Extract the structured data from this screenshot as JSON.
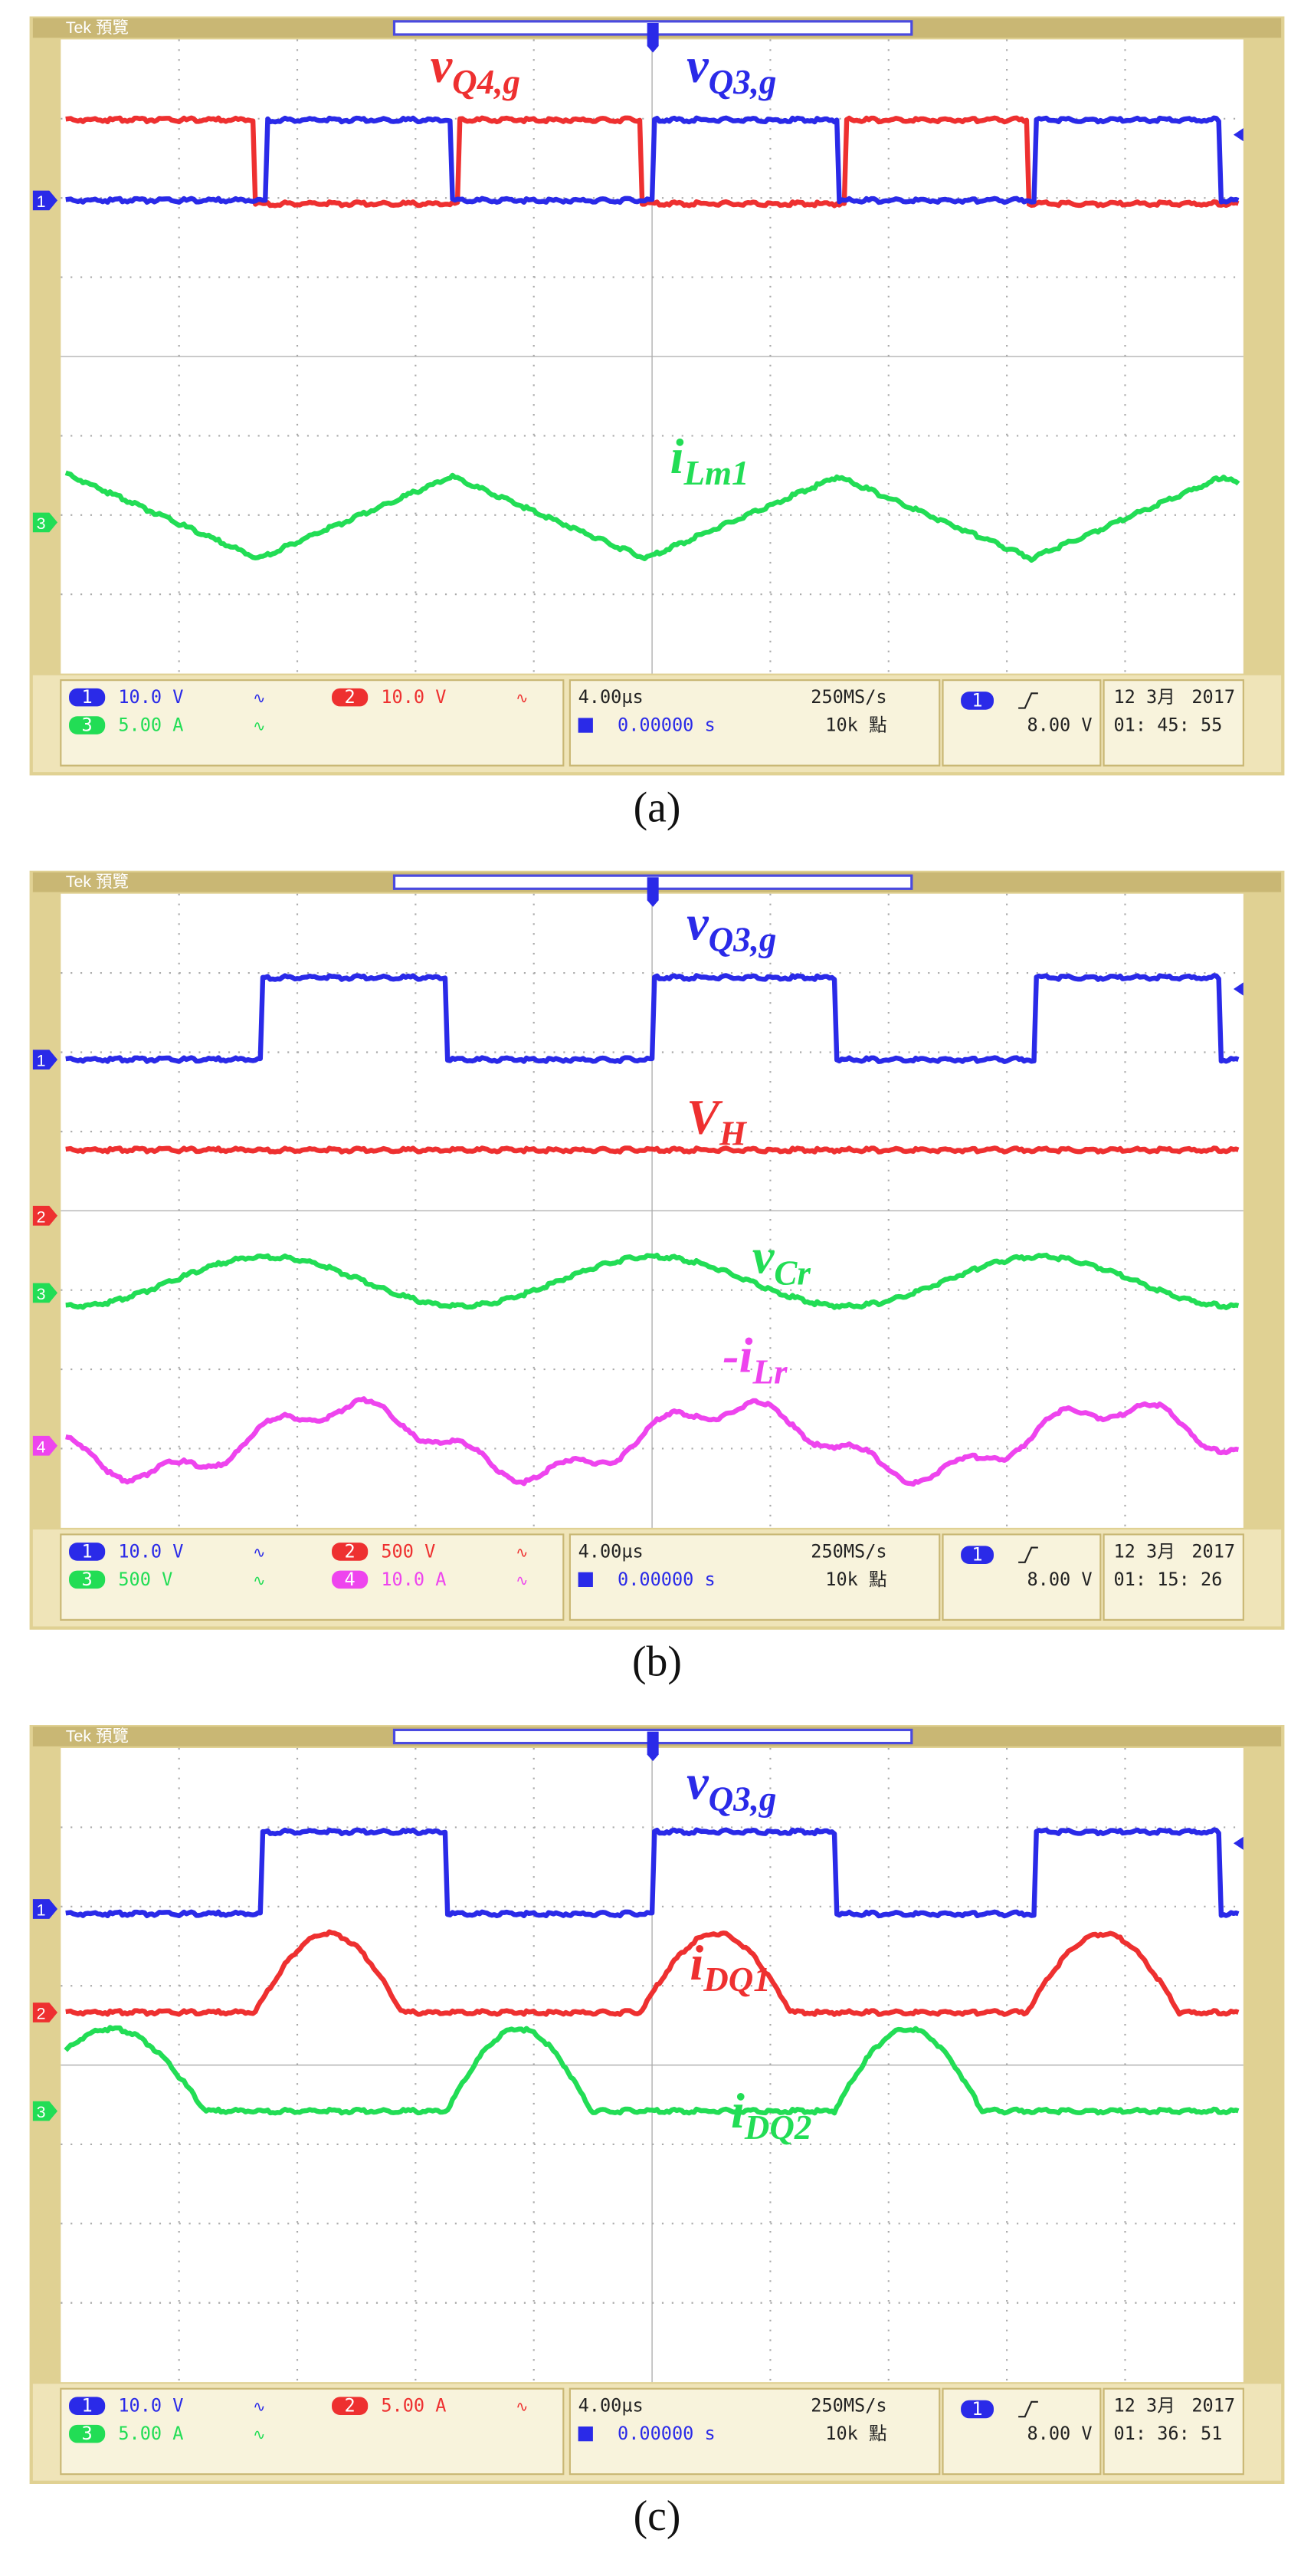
{
  "panels": [
    {
      "label": "(a)",
      "header": "Tek 預覽",
      "traces": [
        {
          "main": "v",
          "sub": "Q4,g"
        },
        {
          "main": "v",
          "sub": "Q3,g"
        },
        {
          "main": "i",
          "sub": "Lm1"
        }
      ],
      "markers": [
        "1",
        "3"
      ],
      "status": {
        "channels": [
          {
            "num": "1",
            "scale": "10.0 V"
          },
          {
            "num": "2",
            "scale": "10.0 V"
          },
          {
            "num": "3",
            "scale": "5.00 A"
          }
        ],
        "timebase": "4.00µs",
        "rate": "250MS/s",
        "position": "0.00000 s",
        "points": "10k 點",
        "trigger": "1",
        "level": "8.00 V",
        "date": "12 3月",
        "year": "2017",
        "time": "01: 45: 55"
      }
    },
    {
      "label": "(b)",
      "header": "Tek 預覽",
      "traces": [
        {
          "main": "v",
          "sub": "Q3,g"
        },
        {
          "main": "V",
          "sub": "H"
        },
        {
          "main": "v",
          "sub": "Cr"
        },
        {
          "main": "-i",
          "sub": "Lr"
        }
      ],
      "markers": [
        "1",
        "2",
        "3",
        "4"
      ],
      "status": {
        "channels": [
          {
            "num": "1",
            "scale": "10.0 V"
          },
          {
            "num": "2",
            "scale": "500 V"
          },
          {
            "num": "3",
            "scale": "500 V"
          },
          {
            "num": "4",
            "scale": "10.0 A"
          }
        ],
        "timebase": "4.00µs",
        "rate": "250MS/s",
        "position": "0.00000 s",
        "points": "10k 點",
        "trigger": "1",
        "level": "8.00 V",
        "date": "12 3月",
        "year": "2017",
        "time": "01: 15: 26"
      }
    },
    {
      "label": "(c)",
      "header": "Tek 預覽",
      "traces": [
        {
          "main": "v",
          "sub": "Q3,g"
        },
        {
          "main": "i",
          "sub": "DQ1"
        },
        {
          "main": "i",
          "sub": "DQ2"
        }
      ],
      "markers": [
        "1",
        "2",
        "3"
      ],
      "status": {
        "channels": [
          {
            "num": "1",
            "scale": "10.0 V"
          },
          {
            "num": "2",
            "scale": "5.00 A"
          },
          {
            "num": "3",
            "scale": "5.00 A"
          }
        ],
        "timebase": "4.00µs",
        "rate": "250MS/s",
        "position": "0.00000 s",
        "points": "10k 點",
        "trigger": "1",
        "level": "8.00 V",
        "date": "12 3月",
        "year": "2017",
        "time": "01: 36: 51"
      }
    }
  ]
}
